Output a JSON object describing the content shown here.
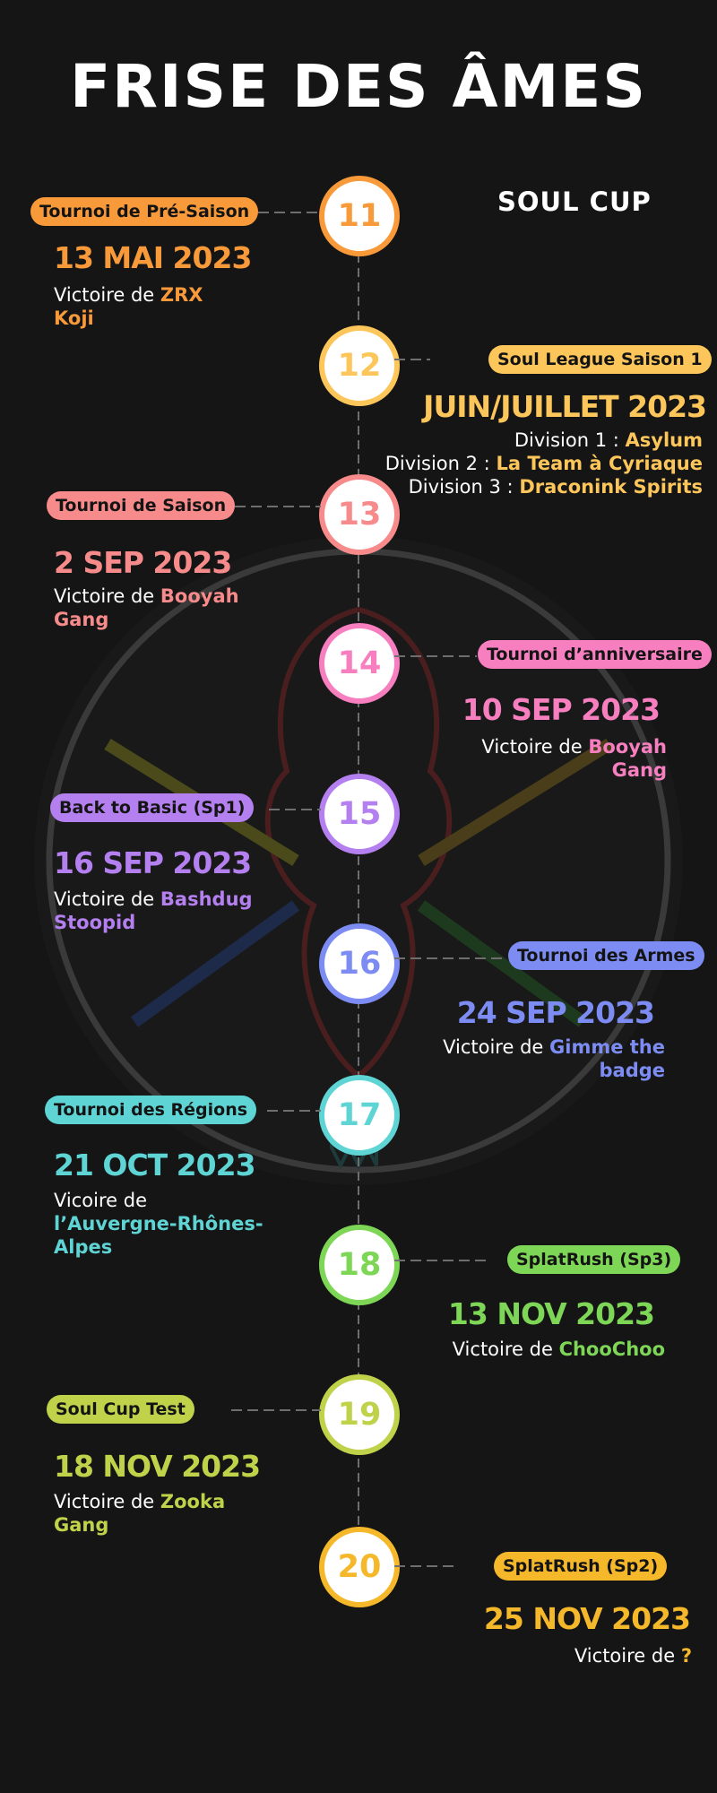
{
  "page": {
    "title": "FRISE DES ÂMES",
    "subtitle": "SOUL CUP"
  },
  "colors": {
    "background": "#151515",
    "axis": "#6e6e6e"
  },
  "events": [
    {
      "number": "11",
      "name": "Tournoi de Pré-Saison",
      "date": "13 MAI 2023",
      "winner_prefix": "Victoire de",
      "winner": "ZRX Koji",
      "color": "#f89a3a"
    },
    {
      "number": "12",
      "name": "Soul League Saison 1",
      "date": "JUIN/JUILLET 2023",
      "divisions": [
        {
          "label": "Division 1 :",
          "team": "Asylum"
        },
        {
          "label": "Division 2 :",
          "team": "La Team à Cyriaque"
        },
        {
          "label": "Division 3 :",
          "team": "Draconink Spirits"
        }
      ],
      "color": "#fcc65a"
    },
    {
      "number": "13",
      "name": "Tournoi de Saison",
      "date": "2 SEP 2023",
      "winner_prefix": "Victoire de",
      "winner": "Booyah Gang",
      "color": "#f78a8a"
    },
    {
      "number": "14",
      "name": "Tournoi d’anniversaire",
      "date": "10 SEP 2023",
      "winner_prefix": "Victoire de",
      "winner": "Booyah Gang",
      "color": "#f77fc0"
    },
    {
      "number": "15",
      "name": "Back to Basic (Sp1)",
      "date": "16 SEP 2023",
      "winner_prefix": "Victoire de",
      "winner": "Bashdug Stoopid",
      "color": "#b480f0"
    },
    {
      "number": "16",
      "name": "Tournoi des Armes",
      "date": "24 SEP 2023",
      "winner_prefix": "Victoire de",
      "winner": "Gimme the badge",
      "color": "#7d8cf2"
    },
    {
      "number": "17",
      "name": "Tournoi des Régions",
      "date": "21 OCT 2023",
      "winner_prefix": "Vicoire de",
      "winner": "l’Auvergne-Rhônes-Alpes",
      "color": "#5fd4d4"
    },
    {
      "number": "18",
      "name": "SplatRush (Sp3)",
      "date": "13 NOV 2023",
      "winner_prefix": "Victoire de",
      "winner": "ChooChoo",
      "color": "#7ed657"
    },
    {
      "number": "19",
      "name": "Soul Cup Test",
      "date": "18 NOV 2023",
      "winner_prefix": "Victoire de",
      "winner": "Zooka Gang",
      "color": "#bfd24a"
    },
    {
      "number": "20",
      "name": "SplatRush (Sp2)",
      "date": "25 NOV 2023",
      "winner_prefix": "Victoire de",
      "winner": "?",
      "color": "#f5b82a"
    }
  ]
}
